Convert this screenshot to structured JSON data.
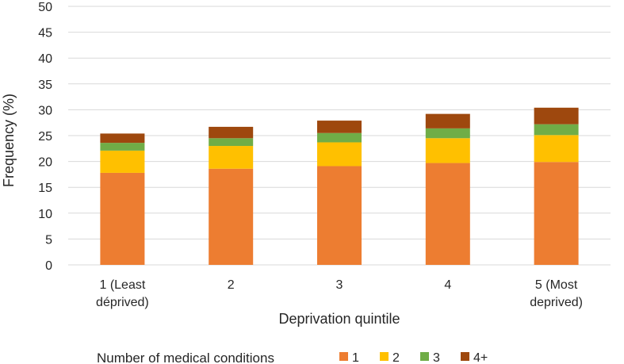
{
  "chart_data": {
    "type": "bar",
    "stacked": true,
    "title": "",
    "xlabel": "Deprivation quintile",
    "ylabel": "Frequency (%)",
    "ylim": [
      0,
      50
    ],
    "yticks": [
      0,
      5,
      10,
      15,
      20,
      25,
      30,
      35,
      40,
      45,
      50
    ],
    "grid": "horizontal",
    "categories": [
      [
        "1 (Least",
        "déprived)"
      ],
      [
        "2"
      ],
      [
        "3"
      ],
      [
        "4"
      ],
      [
        "5 (Most",
        "deprived)"
      ]
    ],
    "legend": {
      "title": "Number of medical conditions",
      "placement": "bottom"
    },
    "series": [
      {
        "name": "1",
        "color": "#ED7D31",
        "values": [
          17.8,
          18.6,
          19.1,
          19.7,
          19.9
        ]
      },
      {
        "name": "2",
        "color": "#FFC000",
        "values": [
          4.3,
          4.4,
          4.6,
          4.8,
          5.2
        ]
      },
      {
        "name": "3",
        "color": "#70AD47",
        "values": [
          1.5,
          1.5,
          1.8,
          1.9,
          2.1
        ]
      },
      {
        "name": "4+",
        "color": "#9E480E",
        "values": [
          1.8,
          2.2,
          2.4,
          2.8,
          3.2
        ]
      }
    ]
  }
}
